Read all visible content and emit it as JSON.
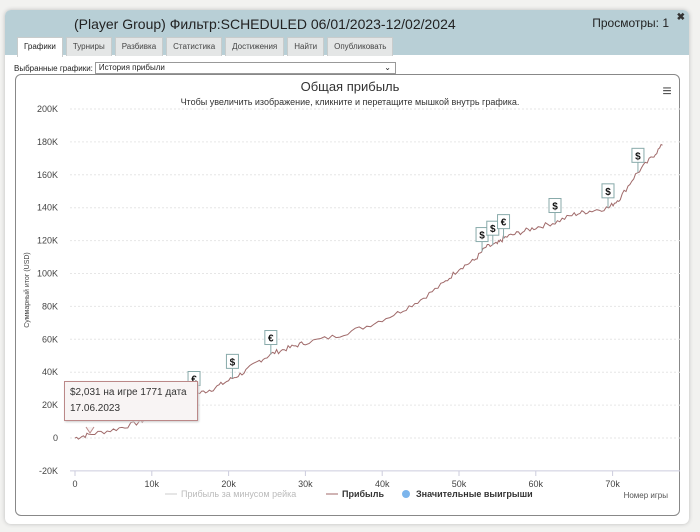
{
  "window": {
    "title": "(Player Group) Фильтр:SCHEDULED 06/01/2023-12/02/2024",
    "views": "Просмотры: 1",
    "close_icon": "close-icon"
  },
  "tabs": [
    {
      "label": "Графики",
      "active": true
    },
    {
      "label": "Турниры"
    },
    {
      "label": "Разбивка"
    },
    {
      "label": "Статистика"
    },
    {
      "label": "Достижения"
    },
    {
      "label": "Найти"
    },
    {
      "label": "Опубликовать"
    }
  ],
  "selector": {
    "label": "Выбранные графики:",
    "value": "История прибыли"
  },
  "tooltip": {
    "line1": "$2,031 на игре 1771 дата",
    "line2": "17.06.2023"
  },
  "chart_data": {
    "type": "line",
    "title": "Общая прибыль",
    "subtitle": "Чтобы увеличить изображение, кликните и перетащите мышкой внутрь графика.",
    "xlabel": "Номер игры",
    "ylabel": "Суммарный итог (USD)",
    "xlim": [
      0,
      77000
    ],
    "ylim": [
      -20000,
      200000
    ],
    "xticks": [
      "0",
      "10k",
      "20k",
      "30k",
      "40k",
      "50k",
      "60k",
      "70k"
    ],
    "yticks": [
      "-20K",
      "0",
      "20K",
      "40K",
      "60K",
      "80K",
      "100K",
      "120K",
      "140K",
      "160K",
      "180K",
      "200K"
    ],
    "grid": true,
    "legend_position": "bottom",
    "legend": [
      {
        "name": "Прибыль за минусом рейка",
        "hidden": true
      },
      {
        "name": "Прибыль"
      },
      {
        "name": "Значительные выигрыши"
      }
    ],
    "series": [
      {
        "name": "Прибыль",
        "color": "#a06a6a",
        "x": [
          0,
          1771,
          5000,
          8000,
          10000,
          13000,
          16000,
          18000,
          20000,
          22000,
          24000,
          26000,
          28000,
          30000,
          34000,
          38000,
          42000,
          45000,
          48000,
          50000,
          52000,
          53500,
          55000,
          56000,
          58000,
          60000,
          62500,
          65000,
          67000,
          69500,
          71000,
          73000,
          75000,
          76500
        ],
        "y": [
          0,
          2031,
          5000,
          9000,
          13000,
          20000,
          27000,
          30000,
          35000,
          40000,
          47000,
          52000,
          55000,
          58000,
          62000,
          68000,
          76000,
          84000,
          94000,
          103000,
          108000,
          116000,
          118000,
          122000,
          125000,
          128000,
          131000,
          136000,
          138000,
          140000,
          146000,
          160000,
          170000,
          178000
        ]
      }
    ],
    "big_wins": [
      {
        "symbol": "€",
        "x": 15500
      },
      {
        "symbol": "$",
        "x": 20500
      },
      {
        "symbol": "€",
        "x": 25500
      },
      {
        "symbol": "$",
        "x": 53000
      },
      {
        "symbol": "$",
        "x": 54400
      },
      {
        "symbol": "€",
        "x": 55800
      },
      {
        "symbol": "$",
        "x": 62500
      },
      {
        "symbol": "$",
        "x": 69400
      },
      {
        "symbol": "$",
        "x": 73300
      }
    ]
  }
}
